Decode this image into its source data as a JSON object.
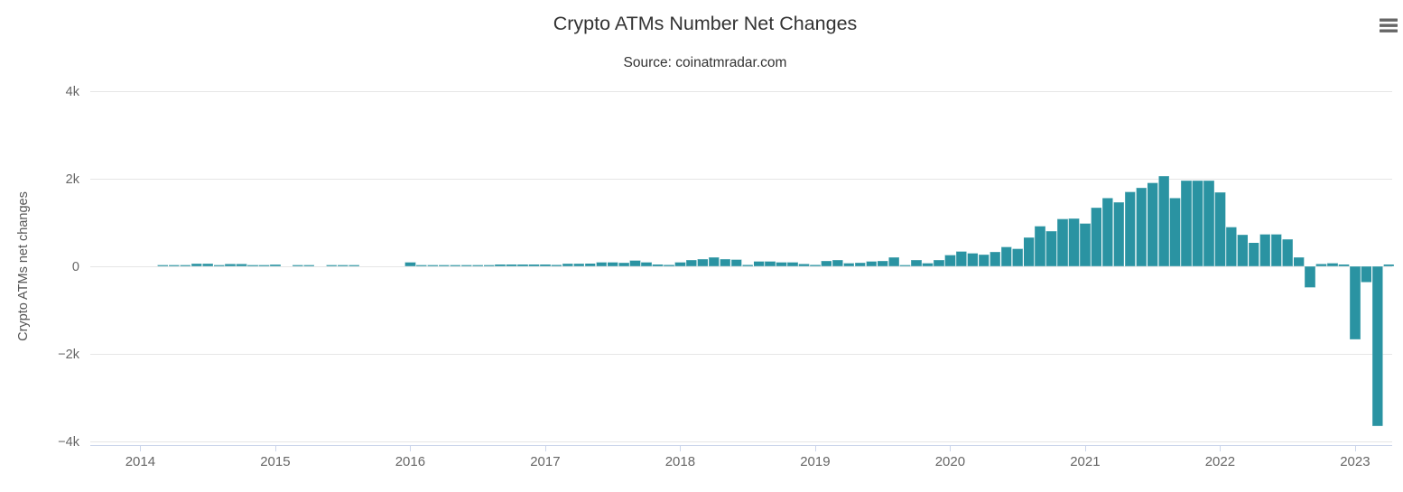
{
  "chart": {
    "title": "Crypto ATMs Number Net Changes",
    "subtitle": "Source: coinatmradar.com",
    "y_axis_title": "Crypto ATMs net changes",
    "context_menu_icon": "hamburger-menu-icon"
  },
  "colors": {
    "bar": "#2a93a2",
    "grid": "#e6e6e6",
    "axis_line": "#ccd6eb",
    "title_text": "#333333",
    "subtitle_text": "#333333",
    "label_text": "#666666",
    "menu_icon": "#666666"
  },
  "chart_data": {
    "type": "bar",
    "title": "Crypto ATMs Number Net Changes",
    "subtitle": "Source: coinatmradar.com",
    "xlabel": "",
    "ylabel": "Crypto ATMs net changes",
    "legend_position": "none",
    "grid": true,
    "ylim": [
      -4100,
      4100
    ],
    "y_tick_values": [
      4000,
      2000,
      0,
      -2000,
      -4000
    ],
    "y_tick_labels": [
      "4k",
      "2k",
      "0",
      "−2k",
      "−4k"
    ],
    "x_tick_labels": [
      "2014",
      "2015",
      "2016",
      "2017",
      "2018",
      "2019",
      "2020",
      "2021",
      "2022",
      "2023"
    ],
    "start_month": "2014-03",
    "series_name": "Crypto ATMs net changes",
    "monthly_net_changes": [
      25,
      25,
      30,
      60,
      60,
      30,
      55,
      55,
      25,
      25,
      40,
      0,
      30,
      30,
      0,
      30,
      30,
      30,
      0,
      0,
      0,
      0,
      95,
      20,
      20,
      15,
      20,
      20,
      25,
      25,
      45,
      45,
      45,
      45,
      45,
      35,
      60,
      60,
      65,
      95,
      95,
      85,
      130,
      90,
      45,
      35,
      95,
      140,
      165,
      205,
      165,
      150,
      35,
      110,
      110,
      90,
      90,
      55,
      35,
      120,
      140,
      70,
      85,
      115,
      120,
      205,
      15,
      140,
      75,
      140,
      255,
      340,
      300,
      270,
      325,
      440,
      400,
      655,
      915,
      805,
      1080,
      1090,
      980,
      1340,
      1560,
      1460,
      1700,
      1790,
      1910,
      2060,
      1560,
      1960,
      1960,
      1960,
      1690,
      895,
      720,
      540,
      735,
      735,
      620,
      205,
      -480,
      55,
      70,
      45,
      -1670,
      -365,
      -3650,
      45
    ]
  }
}
